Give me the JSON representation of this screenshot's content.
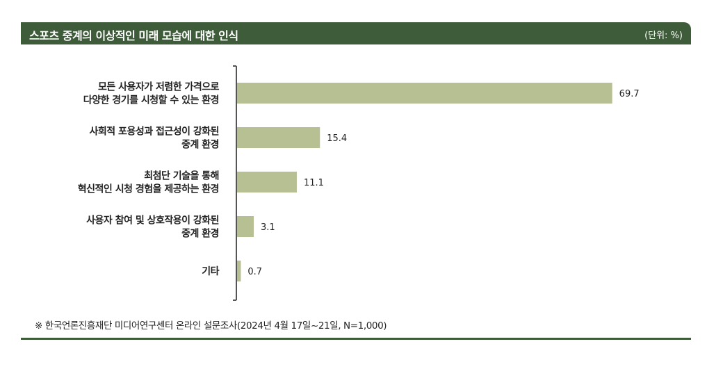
{
  "header": {
    "title": "스포츠 중계의 이상적인 미래 모습에 대한 인식",
    "unit": "(단위: %)"
  },
  "colors": {
    "header_bg": "#3e5c3a",
    "bar": "#b7c092",
    "axis": "#555555",
    "text": "#222222"
  },
  "chart_data": {
    "type": "bar",
    "orientation": "horizontal",
    "title": "스포츠 중계의 이상적인 미래 모습에 대한 인식",
    "unit": "%",
    "categories": [
      [
        "모든 사용자가 저렴한 가격으로",
        "다양한 경기를 시청할 수 있는 환경"
      ],
      [
        "사회적 포용성과 접근성이 강화된",
        "중계 환경"
      ],
      [
        "최첨단 기술을 통해",
        "혁신적인 시청 경험을 제공하는 환경"
      ],
      [
        "사용자 참여 및 상호작용이 강화된",
        "중계 환경"
      ],
      [
        "기타"
      ]
    ],
    "values": [
      69.7,
      15.4,
      11.1,
      3.1,
      0.7
    ],
    "value_labels": [
      "69.7",
      "15.4",
      "11.1",
      "3.1",
      "0.7"
    ],
    "xlim": [
      0,
      70
    ],
    "grid": false,
    "legend": "none"
  },
  "footer": {
    "source": "※ 한국언론진흥재단 미디어연구센터 온라인 설문조사(2024년 4월 17일~21일, N=1,000)"
  }
}
